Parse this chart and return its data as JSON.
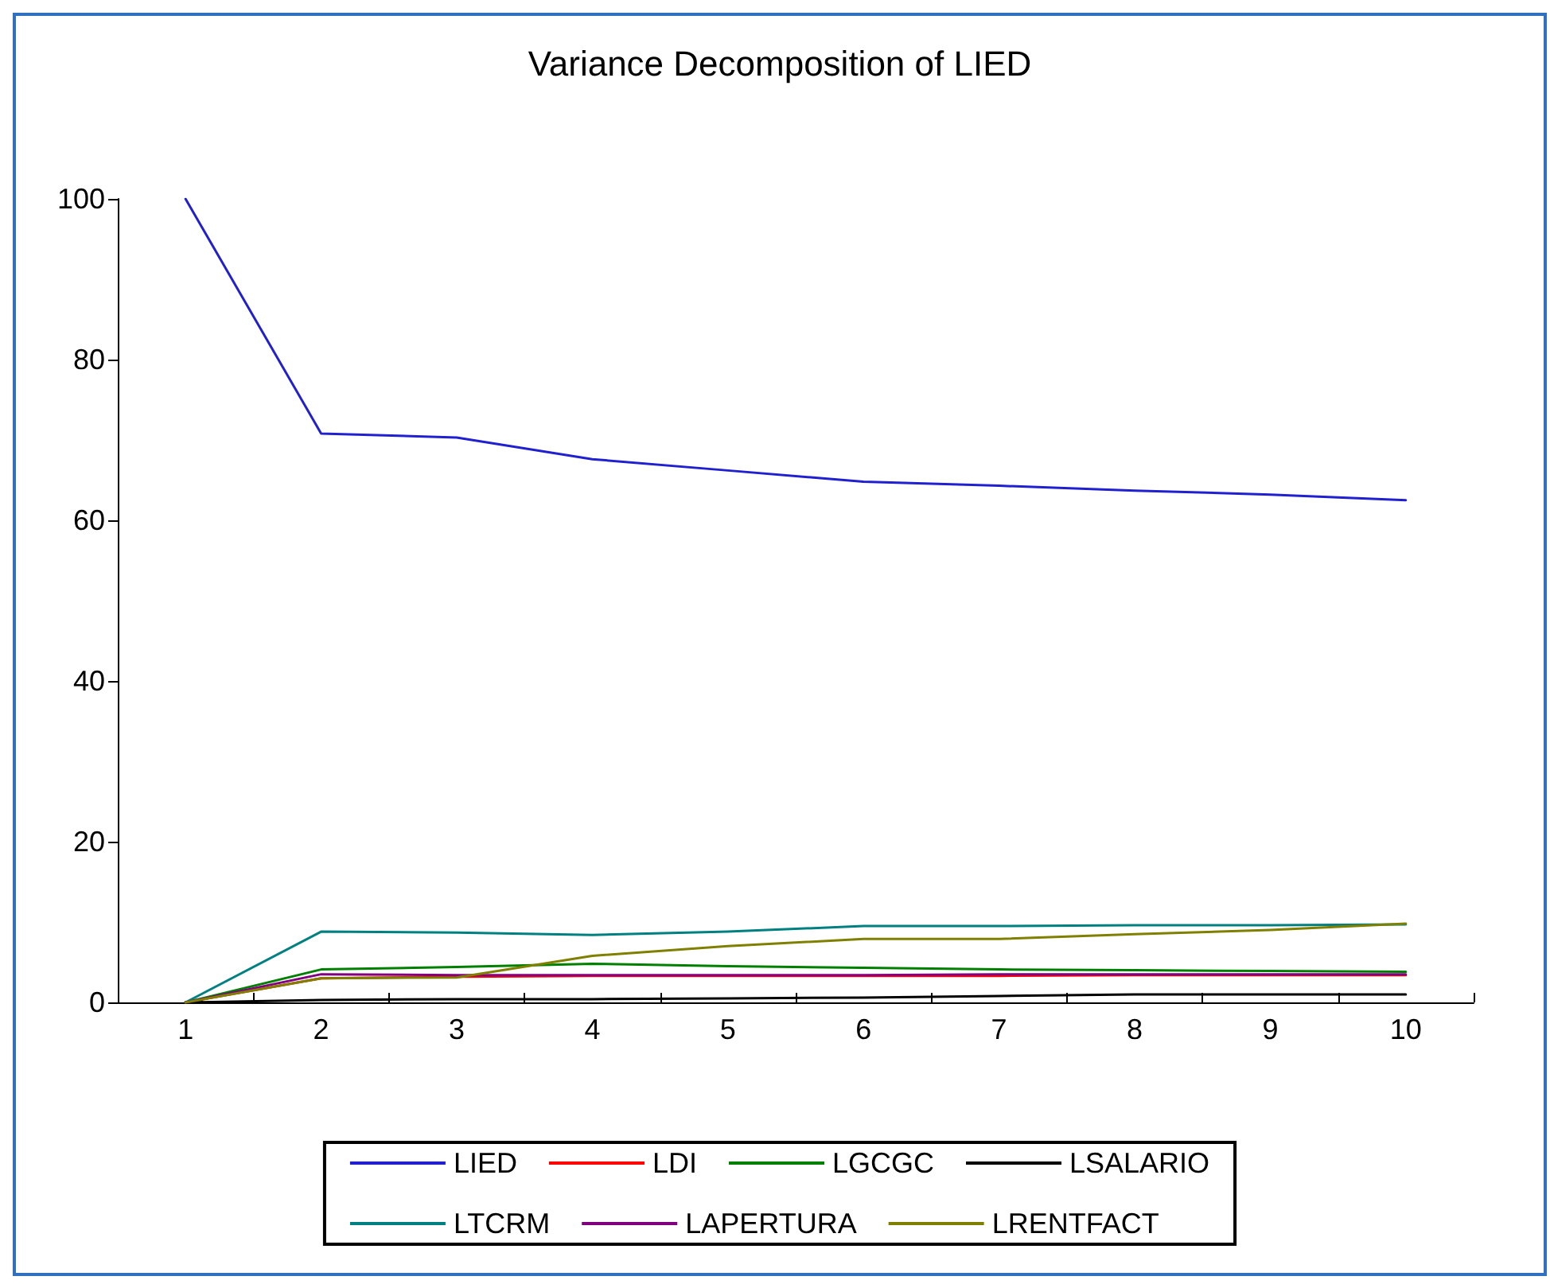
{
  "chart_data": {
    "type": "line",
    "title": "Variance Decomposition of LIED",
    "categories": [
      "1",
      "2",
      "3",
      "4",
      "5",
      "6",
      "7",
      "8",
      "9",
      "10"
    ],
    "ylim": [
      0,
      100
    ],
    "yticks": [
      0,
      20,
      40,
      60,
      80,
      100
    ],
    "grid": false,
    "legend": "bottom",
    "marker": "none",
    "line_style": "solid",
    "series": [
      {
        "name": "LIED",
        "color": "#2020d0",
        "values": [
          100,
          70.8,
          70.3,
          67.6,
          66.2,
          64.8,
          64.3,
          63.7,
          63.2,
          62.5
        ]
      },
      {
        "name": "LDI",
        "color": "#ff0000",
        "values": [
          0,
          3.0,
          3.2,
          3.3,
          3.3,
          3.3,
          3.3,
          3.4,
          3.4,
          3.4
        ]
      },
      {
        "name": "LGCGC",
        "color": "#008000",
        "values": [
          0,
          4.1,
          4.4,
          4.8,
          4.5,
          4.3,
          4.1,
          4.0,
          3.9,
          3.8
        ]
      },
      {
        "name": "LSALARIO",
        "color": "#000000",
        "values": [
          0,
          0.3,
          0.4,
          0.4,
          0.5,
          0.6,
          0.8,
          1.0,
          1.0,
          1.0
        ]
      },
      {
        "name": "LTCRM",
        "color": "#008080",
        "values": [
          0,
          8.8,
          8.7,
          8.4,
          8.8,
          9.5,
          9.5,
          9.6,
          9.6,
          9.7
        ]
      },
      {
        "name": "LAPERTURA",
        "color": "#800080",
        "values": [
          0,
          3.5,
          3.4,
          3.4,
          3.4,
          3.4,
          3.5,
          3.5,
          3.5,
          3.5
        ]
      },
      {
        "name": "LRENTFACT",
        "color": "#808000",
        "values": [
          0,
          3.0,
          3.1,
          5.8,
          7.0,
          7.9,
          7.9,
          8.5,
          9.0,
          9.8
        ]
      }
    ]
  }
}
